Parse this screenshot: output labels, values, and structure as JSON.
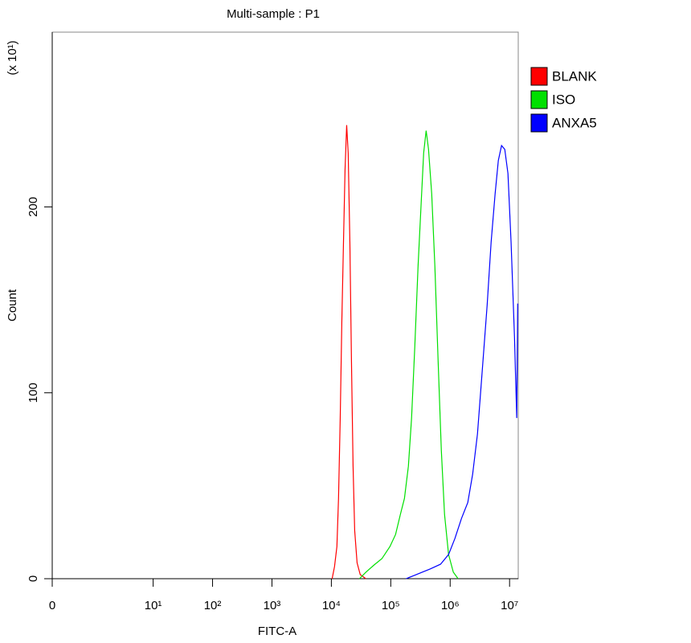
{
  "chart_data": {
    "type": "line",
    "title": "Multi-sample : P1",
    "xlabel": "FITC-A",
    "ylabel": "Count",
    "annotation": "(x 10¹)",
    "xscale": "log",
    "xlim": [
      0.2,
      14000000
    ],
    "xticks": [
      0,
      {
        "value": 10,
        "label": "10¹"
      },
      {
        "value": 100,
        "label": "10²"
      },
      {
        "value": 1000,
        "label": "10³"
      },
      {
        "value": 10000,
        "label": "10⁴"
      },
      {
        "value": 100000,
        "label": "10⁵"
      },
      {
        "value": 1000000,
        "label": "10⁶"
      },
      {
        "value": 10000000,
        "label": "10⁷"
      }
    ],
    "ylim": [
      0,
      294
    ],
    "yticks": [
      0,
      100,
      200
    ],
    "legend": "right",
    "series": [
      {
        "name": "BLANK",
        "color": "#ff0000",
        "x": [
          10300,
          11300,
          12400,
          13200,
          14100,
          15000,
          16000,
          17000,
          18100,
          19200,
          20500,
          21800,
          23200,
          24700,
          27100,
          30600,
          38100
        ],
        "values": [
          0,
          6.5,
          17.3,
          43.2,
          86.4,
          138,
          181,
          220,
          244,
          229,
          181,
          117,
          60.5,
          25.9,
          8.6,
          2.2,
          0
        ]
      },
      {
        "name": "ISO",
        "color": "#00e000",
        "x": [
          29700,
          38100,
          52000,
          71000,
          96900,
          120500,
          145200,
          170000,
          198000,
          224000,
          254000,
          288000,
          326000,
          358000,
          394000,
          432000,
          489000,
          553000,
          627000,
          710000,
          804000,
          940000,
          1130000,
          1360000
        ],
        "values": [
          0,
          3.5,
          7.3,
          10.8,
          17.3,
          23.8,
          34.6,
          43.2,
          60.5,
          86.4,
          125,
          168,
          203,
          229,
          241,
          231,
          207,
          168,
          117,
          69,
          34.6,
          13,
          3.5,
          0
        ]
      },
      {
        "name": "ANXA5",
        "color": "#0000ff",
        "x": [
          181000,
          246000,
          337000,
          459000,
          689000,
          940000,
          1200000,
          1550000,
          1980000,
          2390000,
          2880000,
          3470000,
          4190000,
          4890000,
          5710000,
          6470000,
          7330000,
          8300000,
          9390000,
          10600000,
          12100000,
          13200000,
          13700000
        ],
        "values": [
          0,
          1.7,
          3.5,
          5.2,
          7.8,
          13,
          21.6,
          32.4,
          41,
          56.2,
          77.8,
          112,
          147,
          181,
          207,
          225,
          233,
          231,
          218,
          181,
          130,
          86.4,
          148
        ]
      }
    ]
  }
}
